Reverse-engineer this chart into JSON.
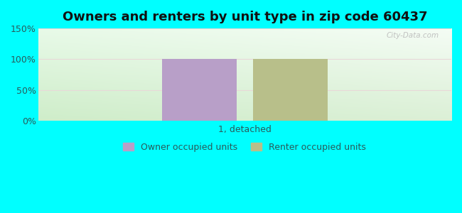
{
  "title": "Owners and renters by unit type in zip code 60437",
  "categories": [
    "1, detached"
  ],
  "owner_values": [
    100
  ],
  "renter_values": [
    100
  ],
  "owner_color": "#b89fc8",
  "renter_color": "#b8bf8a",
  "ylim": [
    0,
    150
  ],
  "yticks": [
    0,
    50,
    100,
    150
  ],
  "ytick_labels": [
    "0%",
    "50%",
    "100%",
    "150%"
  ],
  "outer_bg": "#00ffff",
  "legend_owner": "Owner occupied units",
  "legend_renter": "Renter occupied units",
  "watermark": "City-Data.com",
  "title_fontsize": 13,
  "label_fontsize": 9,
  "tick_fontsize": 9,
  "text_color": "#2a5a5a",
  "grid_color": "#dddddd"
}
